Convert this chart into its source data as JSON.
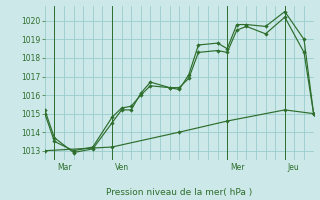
{
  "background_color": "#cce8e8",
  "grid_color": "#99cccc",
  "line_color": "#2d6e2d",
  "title": "Pression niveau de la mer( hPa )",
  "day_labels": [
    "Mar",
    "Ven",
    "Mer",
    "Jeu"
  ],
  "ylim": [
    1012.5,
    1020.8
  ],
  "yticks": [
    1013,
    1014,
    1015,
    1016,
    1017,
    1018,
    1019,
    1020
  ],
  "xlim": [
    0,
    28
  ],
  "vline_positions": [
    1,
    7,
    19,
    25
  ],
  "series1_x": [
    0,
    1,
    3,
    5,
    7,
    8,
    9,
    10,
    11,
    13,
    14,
    15,
    16,
    18,
    19,
    20,
    21,
    23,
    25,
    27,
    28
  ],
  "series1_y": [
    1015.2,
    1013.7,
    1012.9,
    1013.1,
    1014.5,
    1015.2,
    1015.2,
    1016.1,
    1016.7,
    1016.4,
    1016.3,
    1017.1,
    1018.7,
    1018.8,
    1018.5,
    1019.8,
    1019.8,
    1019.7,
    1020.5,
    1019.0,
    1015.0
  ],
  "series2_x": [
    0,
    1,
    3,
    5,
    7,
    8,
    9,
    10,
    11,
    13,
    14,
    15,
    16,
    18,
    19,
    20,
    21,
    23,
    25,
    27,
    28
  ],
  "series2_y": [
    1015.0,
    1013.5,
    1013.0,
    1013.2,
    1014.8,
    1015.3,
    1015.4,
    1016.0,
    1016.5,
    1016.4,
    1016.4,
    1016.9,
    1018.3,
    1018.4,
    1018.3,
    1019.5,
    1019.7,
    1019.3,
    1020.2,
    1018.3,
    1015.0
  ],
  "series3_x": [
    0,
    7,
    14,
    19,
    25,
    28
  ],
  "series3_y": [
    1013.0,
    1013.2,
    1014.0,
    1014.6,
    1015.2,
    1015.0
  ],
  "marker_size": 2.2,
  "linewidth": 0.85,
  "tick_fontsize": 5.5,
  "label_fontsize": 6.5
}
